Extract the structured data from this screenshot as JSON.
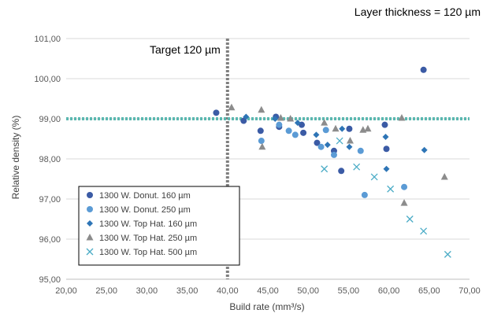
{
  "chart_data": {
    "type": "scatter",
    "title": "Layer thickness = 120 µm",
    "xlabel": "Build rate (mm³/s)",
    "ylabel": "Relative density (%)",
    "xlim": [
      20,
      70
    ],
    "ylim": [
      95,
      101
    ],
    "x_ticks": [
      "20,00",
      "25,00",
      "30,00",
      "35,00",
      "40,00",
      "45,00",
      "50,00",
      "55,00",
      "60,00",
      "65,00",
      "70,00"
    ],
    "y_ticks": [
      "95,00",
      "96,00",
      "97,00",
      "98,00",
      "99,00",
      "100,00",
      "101,00"
    ],
    "grid": "horizontal",
    "legend_position": "bottom-left",
    "reference_lines": [
      {
        "orientation": "vertical",
        "value": 40,
        "label": "Target 120 µm",
        "color": "#7f7f7f"
      },
      {
        "orientation": "horizontal",
        "value": 99,
        "label": "",
        "color": "#5bb8b0"
      }
    ],
    "series": [
      {
        "name": "1300 W. Donut. 160 µm",
        "marker": "circle",
        "color": "#3b5ba5",
        "points": [
          {
            "x": 38.6,
            "y": 99.15
          },
          {
            "x": 42.0,
            "y": 98.95
          },
          {
            "x": 44.1,
            "y": 98.7
          },
          {
            "x": 46.0,
            "y": 99.05
          },
          {
            "x": 46.4,
            "y": 98.8
          },
          {
            "x": 49.2,
            "y": 98.85
          },
          {
            "x": 49.4,
            "y": 98.65
          },
          {
            "x": 51.1,
            "y": 98.4
          },
          {
            "x": 53.2,
            "y": 98.2
          },
          {
            "x": 54.1,
            "y": 97.7
          },
          {
            "x": 55.1,
            "y": 98.75
          },
          {
            "x": 59.5,
            "y": 98.85
          },
          {
            "x": 59.7,
            "y": 98.25
          },
          {
            "x": 64.3,
            "y": 100.22
          }
        ]
      },
      {
        "name": "1300 W. Donut. 250 µm",
        "marker": "circle",
        "color": "#5b9bd5",
        "points": [
          {
            "x": 44.2,
            "y": 98.45
          },
          {
            "x": 46.4,
            "y": 98.85
          },
          {
            "x": 47.6,
            "y": 98.7
          },
          {
            "x": 48.4,
            "y": 98.6
          },
          {
            "x": 51.6,
            "y": 98.3
          },
          {
            "x": 52.2,
            "y": 98.72
          },
          {
            "x": 53.2,
            "y": 98.1
          },
          {
            "x": 56.5,
            "y": 98.2
          },
          {
            "x": 57.0,
            "y": 97.1
          },
          {
            "x": 61.9,
            "y": 97.3
          }
        ]
      },
      {
        "name": "1300 W. Top Hat. 160 µm",
        "marker": "diamond",
        "color": "#2e75b6",
        "points": [
          {
            "x": 42.3,
            "y": 99.05
          },
          {
            "x": 45.9,
            "y": 99.0
          },
          {
            "x": 48.7,
            "y": 98.9
          },
          {
            "x": 51.0,
            "y": 98.6
          },
          {
            "x": 52.4,
            "y": 98.35
          },
          {
            "x": 54.2,
            "y": 98.75
          },
          {
            "x": 55.1,
            "y": 98.3
          },
          {
            "x": 59.6,
            "y": 98.55
          },
          {
            "x": 59.7,
            "y": 97.75
          },
          {
            "x": 64.4,
            "y": 98.22
          }
        ]
      },
      {
        "name": "1300 W. Top Hat. 250 µm",
        "marker": "triangle",
        "color": "#8c8c8c",
        "points": [
          {
            "x": 40.5,
            "y": 99.28
          },
          {
            "x": 44.2,
            "y": 99.22
          },
          {
            "x": 44.3,
            "y": 98.3
          },
          {
            "x": 46.6,
            "y": 99.02
          },
          {
            "x": 47.8,
            "y": 99.0
          },
          {
            "x": 52.0,
            "y": 98.9
          },
          {
            "x": 53.4,
            "y": 98.75
          },
          {
            "x": 55.2,
            "y": 98.45
          },
          {
            "x": 56.8,
            "y": 98.72
          },
          {
            "x": 57.4,
            "y": 98.75
          },
          {
            "x": 61.6,
            "y": 99.02
          },
          {
            "x": 61.9,
            "y": 96.9
          },
          {
            "x": 66.9,
            "y": 97.55
          }
        ]
      },
      {
        "name": "1300 W. Top Hat. 500 µm",
        "marker": "x",
        "color": "#4bacc6",
        "points": [
          {
            "x": 52.0,
            "y": 97.75
          },
          {
            "x": 53.9,
            "y": 98.45
          },
          {
            "x": 56.0,
            "y": 97.8
          },
          {
            "x": 58.2,
            "y": 97.55
          },
          {
            "x": 60.2,
            "y": 97.25
          },
          {
            "x": 62.6,
            "y": 96.5
          },
          {
            "x": 64.3,
            "y": 96.2
          },
          {
            "x": 67.3,
            "y": 95.62
          }
        ]
      }
    ]
  }
}
